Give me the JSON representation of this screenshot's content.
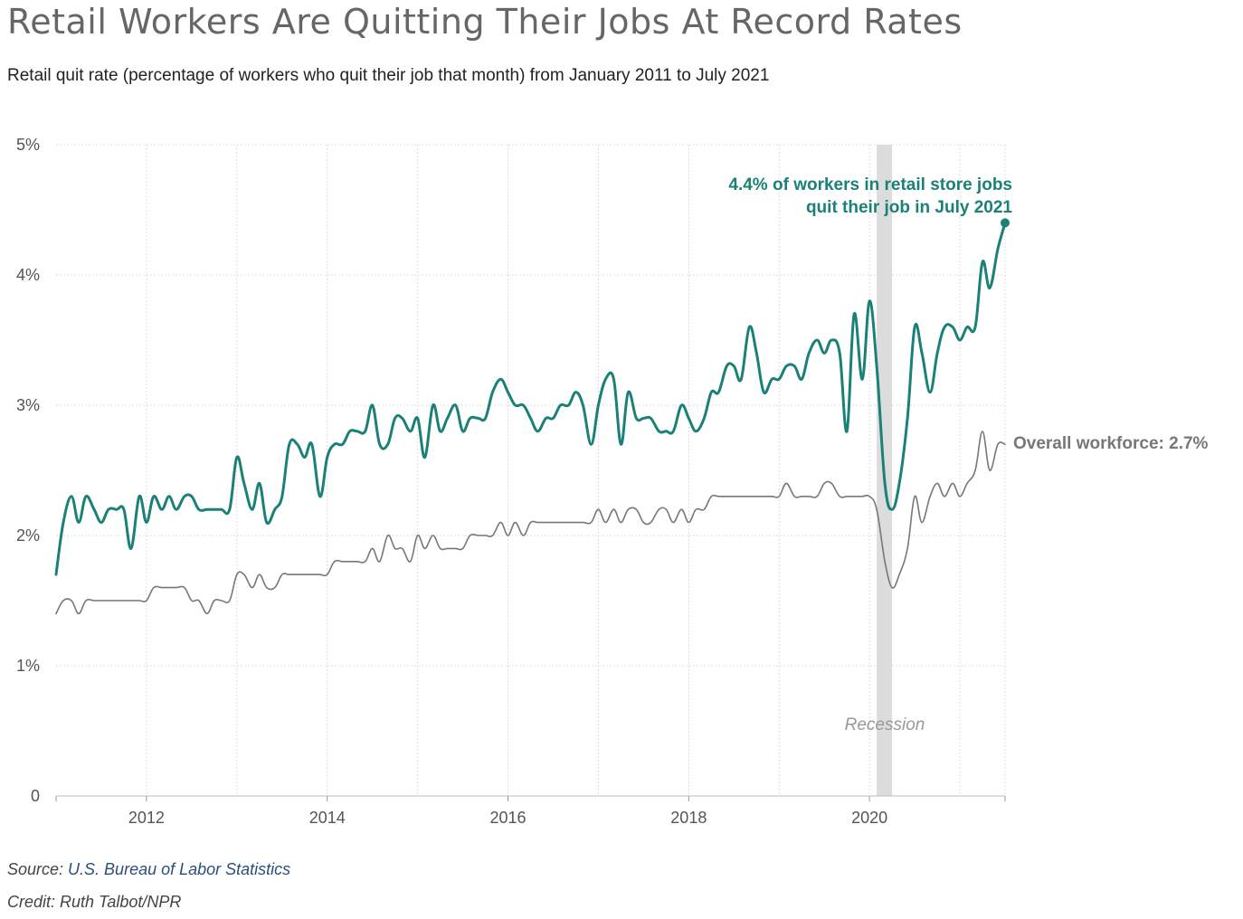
{
  "header": {
    "title": "Retail Workers Are Quitting Their Jobs At Record Rates",
    "subtitle": "Retail quit rate (percentage of workers who quit their job that month) from January 2011 to July 2021"
  },
  "footer": {
    "source_prefix": "Source: ",
    "source_name": "U.S. Bureau of Labor Statistics",
    "credit": "Credit: Ruth Talbot/NPR"
  },
  "colors": {
    "retail": "#1b8077",
    "overall": "#777777",
    "recession": "#dcdcdc",
    "grid": "#dddddd"
  },
  "chart_data": {
    "type": "line",
    "xlabel": "",
    "ylabel": "",
    "xlim": [
      2011.0,
      2021.5
    ],
    "ylim": [
      0,
      5
    ],
    "x_ticks": [
      2012,
      2014,
      2016,
      2018,
      2020
    ],
    "x_tick_labels": [
      "2012",
      "2014",
      "2016",
      "2018",
      "2020"
    ],
    "y_ticks": [
      0,
      1,
      2,
      3,
      4,
      5
    ],
    "y_tick_labels": [
      "0",
      "1%",
      "2%",
      "3%",
      "4%",
      "5%"
    ],
    "grid": true,
    "recession": {
      "start": 2020.08,
      "end": 2020.25,
      "label": "Recession"
    },
    "annotations": {
      "retail_line1": "4.4% of workers in retail store jobs",
      "retail_line2": "quit their job in July 2021",
      "overall": "Overall workforce: 2.7%"
    },
    "series": [
      {
        "name": "Retail",
        "points": [
          [
            2011.0,
            1.7
          ],
          [
            2011.08,
            2.1
          ],
          [
            2011.17,
            2.3
          ],
          [
            2011.25,
            2.1
          ],
          [
            2011.33,
            2.3
          ],
          [
            2011.42,
            2.2
          ],
          [
            2011.5,
            2.1
          ],
          [
            2011.58,
            2.2
          ],
          [
            2011.67,
            2.2
          ],
          [
            2011.75,
            2.2
          ],
          [
            2011.83,
            1.9
          ],
          [
            2011.92,
            2.3
          ],
          [
            2012.0,
            2.1
          ],
          [
            2012.08,
            2.3
          ],
          [
            2012.17,
            2.2
          ],
          [
            2012.25,
            2.3
          ],
          [
            2012.33,
            2.2
          ],
          [
            2012.42,
            2.3
          ],
          [
            2012.5,
            2.3
          ],
          [
            2012.58,
            2.2
          ],
          [
            2012.67,
            2.2
          ],
          [
            2012.75,
            2.2
          ],
          [
            2012.83,
            2.2
          ],
          [
            2012.92,
            2.2
          ],
          [
            2013.0,
            2.6
          ],
          [
            2013.08,
            2.4
          ],
          [
            2013.17,
            2.2
          ],
          [
            2013.25,
            2.4
          ],
          [
            2013.33,
            2.1
          ],
          [
            2013.42,
            2.2
          ],
          [
            2013.5,
            2.3
          ],
          [
            2013.58,
            2.7
          ],
          [
            2013.67,
            2.7
          ],
          [
            2013.75,
            2.6
          ],
          [
            2013.83,
            2.7
          ],
          [
            2013.92,
            2.3
          ],
          [
            2014.0,
            2.6
          ],
          [
            2014.08,
            2.7
          ],
          [
            2014.17,
            2.7
          ],
          [
            2014.25,
            2.8
          ],
          [
            2014.33,
            2.8
          ],
          [
            2014.42,
            2.8
          ],
          [
            2014.5,
            3.0
          ],
          [
            2014.58,
            2.7
          ],
          [
            2014.67,
            2.7
          ],
          [
            2014.75,
            2.9
          ],
          [
            2014.83,
            2.9
          ],
          [
            2014.92,
            2.8
          ],
          [
            2015.0,
            2.9
          ],
          [
            2015.08,
            2.6
          ],
          [
            2015.17,
            3.0
          ],
          [
            2015.25,
            2.8
          ],
          [
            2015.33,
            2.9
          ],
          [
            2015.42,
            3.0
          ],
          [
            2015.5,
            2.8
          ],
          [
            2015.58,
            2.9
          ],
          [
            2015.67,
            2.9
          ],
          [
            2015.75,
            2.9
          ],
          [
            2015.83,
            3.1
          ],
          [
            2015.92,
            3.2
          ],
          [
            2016.0,
            3.1
          ],
          [
            2016.08,
            3.0
          ],
          [
            2016.17,
            3.0
          ],
          [
            2016.25,
            2.9
          ],
          [
            2016.33,
            2.8
          ],
          [
            2016.42,
            2.9
          ],
          [
            2016.5,
            2.9
          ],
          [
            2016.58,
            3.0
          ],
          [
            2016.67,
            3.0
          ],
          [
            2016.75,
            3.1
          ],
          [
            2016.83,
            3.0
          ],
          [
            2016.92,
            2.7
          ],
          [
            2017.0,
            3.0
          ],
          [
            2017.08,
            3.2
          ],
          [
            2017.17,
            3.2
          ],
          [
            2017.25,
            2.7
          ],
          [
            2017.33,
            3.1
          ],
          [
            2017.42,
            2.9
          ],
          [
            2017.5,
            2.9
          ],
          [
            2017.58,
            2.9
          ],
          [
            2017.67,
            2.8
          ],
          [
            2017.75,
            2.8
          ],
          [
            2017.83,
            2.8
          ],
          [
            2017.92,
            3.0
          ],
          [
            2018.0,
            2.9
          ],
          [
            2018.08,
            2.8
          ],
          [
            2018.17,
            2.9
          ],
          [
            2018.25,
            3.1
          ],
          [
            2018.33,
            3.1
          ],
          [
            2018.42,
            3.3
          ],
          [
            2018.5,
            3.3
          ],
          [
            2018.58,
            3.2
          ],
          [
            2018.67,
            3.6
          ],
          [
            2018.75,
            3.4
          ],
          [
            2018.83,
            3.1
          ],
          [
            2018.92,
            3.2
          ],
          [
            2019.0,
            3.2
          ],
          [
            2019.08,
            3.3
          ],
          [
            2019.17,
            3.3
          ],
          [
            2019.25,
            3.2
          ],
          [
            2019.33,
            3.4
          ],
          [
            2019.42,
            3.5
          ],
          [
            2019.5,
            3.4
          ],
          [
            2019.58,
            3.5
          ],
          [
            2019.67,
            3.4
          ],
          [
            2019.75,
            2.8
          ],
          [
            2019.83,
            3.7
          ],
          [
            2019.92,
            3.2
          ],
          [
            2020.0,
            3.8
          ],
          [
            2020.08,
            3.3
          ],
          [
            2020.17,
            2.4
          ],
          [
            2020.25,
            2.2
          ],
          [
            2020.33,
            2.4
          ],
          [
            2020.42,
            2.9
          ],
          [
            2020.5,
            3.6
          ],
          [
            2020.58,
            3.4
          ],
          [
            2020.67,
            3.1
          ],
          [
            2020.75,
            3.4
          ],
          [
            2020.83,
            3.6
          ],
          [
            2020.92,
            3.6
          ],
          [
            2021.0,
            3.5
          ],
          [
            2021.08,
            3.6
          ],
          [
            2021.17,
            3.6
          ],
          [
            2021.25,
            4.1
          ],
          [
            2021.33,
            3.9
          ],
          [
            2021.42,
            4.2
          ],
          [
            2021.5,
            4.4
          ]
        ]
      },
      {
        "name": "Overall workforce",
        "points": [
          [
            2011.0,
            1.4
          ],
          [
            2011.08,
            1.5
          ],
          [
            2011.17,
            1.5
          ],
          [
            2011.25,
            1.4
          ],
          [
            2011.33,
            1.5
          ],
          [
            2011.42,
            1.5
          ],
          [
            2011.5,
            1.5
          ],
          [
            2011.58,
            1.5
          ],
          [
            2011.67,
            1.5
          ],
          [
            2011.75,
            1.5
          ],
          [
            2011.83,
            1.5
          ],
          [
            2011.92,
            1.5
          ],
          [
            2012.0,
            1.5
          ],
          [
            2012.08,
            1.6
          ],
          [
            2012.17,
            1.6
          ],
          [
            2012.25,
            1.6
          ],
          [
            2012.33,
            1.6
          ],
          [
            2012.42,
            1.6
          ],
          [
            2012.5,
            1.5
          ],
          [
            2012.58,
            1.5
          ],
          [
            2012.67,
            1.4
          ],
          [
            2012.75,
            1.5
          ],
          [
            2012.83,
            1.5
          ],
          [
            2012.92,
            1.5
          ],
          [
            2013.0,
            1.7
          ],
          [
            2013.08,
            1.7
          ],
          [
            2013.17,
            1.6
          ],
          [
            2013.25,
            1.7
          ],
          [
            2013.33,
            1.6
          ],
          [
            2013.42,
            1.6
          ],
          [
            2013.5,
            1.7
          ],
          [
            2013.58,
            1.7
          ],
          [
            2013.67,
            1.7
          ],
          [
            2013.75,
            1.7
          ],
          [
            2013.83,
            1.7
          ],
          [
            2013.92,
            1.7
          ],
          [
            2014.0,
            1.7
          ],
          [
            2014.08,
            1.8
          ],
          [
            2014.17,
            1.8
          ],
          [
            2014.25,
            1.8
          ],
          [
            2014.33,
            1.8
          ],
          [
            2014.42,
            1.8
          ],
          [
            2014.5,
            1.9
          ],
          [
            2014.58,
            1.8
          ],
          [
            2014.67,
            2.0
          ],
          [
            2014.75,
            1.9
          ],
          [
            2014.83,
            1.9
          ],
          [
            2014.92,
            1.8
          ],
          [
            2015.0,
            2.0
          ],
          [
            2015.08,
            1.9
          ],
          [
            2015.17,
            2.0
          ],
          [
            2015.25,
            1.9
          ],
          [
            2015.33,
            1.9
          ],
          [
            2015.42,
            1.9
          ],
          [
            2015.5,
            1.9
          ],
          [
            2015.58,
            2.0
          ],
          [
            2015.67,
            2.0
          ],
          [
            2015.75,
            2.0
          ],
          [
            2015.83,
            2.0
          ],
          [
            2015.92,
            2.1
          ],
          [
            2016.0,
            2.0
          ],
          [
            2016.08,
            2.1
          ],
          [
            2016.17,
            2.0
          ],
          [
            2016.25,
            2.1
          ],
          [
            2016.33,
            2.1
          ],
          [
            2016.42,
            2.1
          ],
          [
            2016.5,
            2.1
          ],
          [
            2016.58,
            2.1
          ],
          [
            2016.67,
            2.1
          ],
          [
            2016.75,
            2.1
          ],
          [
            2016.83,
            2.1
          ],
          [
            2016.92,
            2.1
          ],
          [
            2017.0,
            2.2
          ],
          [
            2017.08,
            2.1
          ],
          [
            2017.17,
            2.2
          ],
          [
            2017.25,
            2.1
          ],
          [
            2017.33,
            2.2
          ],
          [
            2017.42,
            2.2
          ],
          [
            2017.5,
            2.1
          ],
          [
            2017.58,
            2.1
          ],
          [
            2017.67,
            2.2
          ],
          [
            2017.75,
            2.2
          ],
          [
            2017.83,
            2.1
          ],
          [
            2017.92,
            2.2
          ],
          [
            2018.0,
            2.1
          ],
          [
            2018.08,
            2.2
          ],
          [
            2018.17,
            2.2
          ],
          [
            2018.25,
            2.3
          ],
          [
            2018.33,
            2.3
          ],
          [
            2018.42,
            2.3
          ],
          [
            2018.5,
            2.3
          ],
          [
            2018.58,
            2.3
          ],
          [
            2018.67,
            2.3
          ],
          [
            2018.75,
            2.3
          ],
          [
            2018.83,
            2.3
          ],
          [
            2018.92,
            2.3
          ],
          [
            2019.0,
            2.3
          ],
          [
            2019.08,
            2.4
          ],
          [
            2019.17,
            2.3
          ],
          [
            2019.25,
            2.3
          ],
          [
            2019.33,
            2.3
          ],
          [
            2019.42,
            2.3
          ],
          [
            2019.5,
            2.4
          ],
          [
            2019.58,
            2.4
          ],
          [
            2019.67,
            2.3
          ],
          [
            2019.75,
            2.3
          ],
          [
            2019.83,
            2.3
          ],
          [
            2019.92,
            2.3
          ],
          [
            2020.0,
            2.3
          ],
          [
            2020.08,
            2.2
          ],
          [
            2020.17,
            1.8
          ],
          [
            2020.25,
            1.6
          ],
          [
            2020.33,
            1.7
          ],
          [
            2020.42,
            1.9
          ],
          [
            2020.5,
            2.3
          ],
          [
            2020.58,
            2.1
          ],
          [
            2020.67,
            2.3
          ],
          [
            2020.75,
            2.4
          ],
          [
            2020.83,
            2.3
          ],
          [
            2020.92,
            2.4
          ],
          [
            2021.0,
            2.3
          ],
          [
            2021.08,
            2.4
          ],
          [
            2021.17,
            2.5
          ],
          [
            2021.25,
            2.8
          ],
          [
            2021.33,
            2.5
          ],
          [
            2021.42,
            2.7
          ],
          [
            2021.5,
            2.7
          ]
        ]
      }
    ]
  }
}
